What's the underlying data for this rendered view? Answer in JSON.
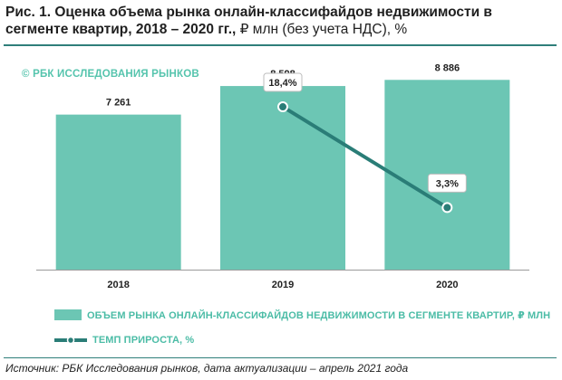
{
  "title": {
    "main": "Рис. 1. Оценка объема рынка онлайн-классифайдов недвижимости в сегменте квартир, 2018 – 2020 гг.,",
    "unit": "₽ млн (без учета НДС), %"
  },
  "watermark": "© РБК ИССЛЕДОВАНИЯ РЫНКОВ",
  "colors": {
    "bar": "#6cc6b4",
    "line": "#2a7d77",
    "accent": "#4bbca6",
    "rule": "#2f7f7a"
  },
  "chart_data": {
    "type": "bar",
    "categories": [
      "2018",
      "2019",
      "2020"
    ],
    "values": [
      7261,
      8598,
      8886
    ],
    "value_labels": [
      "7 261",
      "8 598",
      "8 886"
    ],
    "ylim": [
      0,
      10000
    ],
    "series": [
      {
        "name": "ОБЪЕМ РЫНКА ОНЛАЙН-КЛАССИФАЙДОВ НЕДВИЖИМОСТИ В СЕГМЕНТЕ КВАРТИР, ₽ МЛН",
        "type": "bar",
        "values": [
          7261,
          8598,
          8886
        ]
      },
      {
        "name": "ТЕМП ПРИРОСТА, %",
        "type": "line",
        "values": [
          null,
          18.4,
          3.3
        ],
        "labels": [
          "",
          "18,4%",
          "3,3%"
        ],
        "ylim": [
          -6,
          26
        ]
      }
    ]
  },
  "legend": {
    "bars": "ОБЪЕМ РЫНКА ОНЛАЙН-КЛАССИФАЙДОВ НЕДВИЖИМОСТИ В СЕГМЕНТЕ КВАРТИР, ₽ МЛН",
    "line": "ТЕМП ПРИРОСТА, %"
  },
  "source": "Источник: РБК Исследования рынков, дата актуализации – апрель 2021 года"
}
